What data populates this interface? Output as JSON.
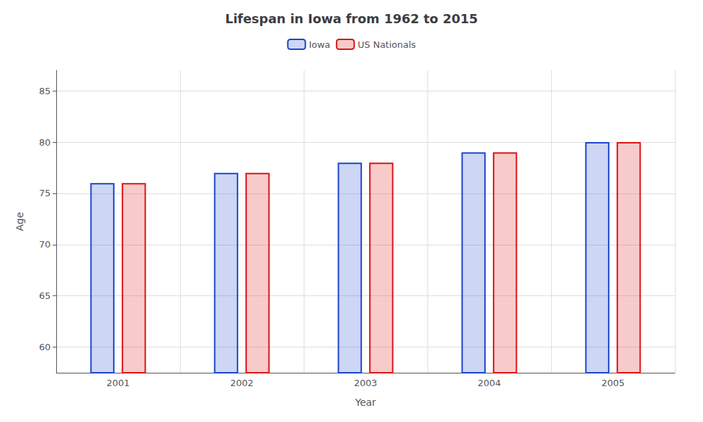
{
  "chart_data": {
    "type": "bar",
    "title": "Lifespan in Iowa from 1962 to 2015",
    "xlabel": "Year",
    "ylabel": "Age",
    "categories": [
      "2001",
      "2002",
      "2003",
      "2004",
      "2005"
    ],
    "series": [
      {
        "name": "Iowa",
        "color": "#1a44cc",
        "values": [
          76,
          77,
          78,
          79,
          80
        ]
      },
      {
        "name": "US Nationals",
        "color": "#dd1111",
        "values": [
          76,
          77,
          78,
          79,
          80
        ]
      }
    ],
    "ylim": [
      57.5,
      87
    ],
    "yticks": [
      60,
      65,
      70,
      75,
      80,
      85
    ],
    "grid": true,
    "legend": "top"
  }
}
